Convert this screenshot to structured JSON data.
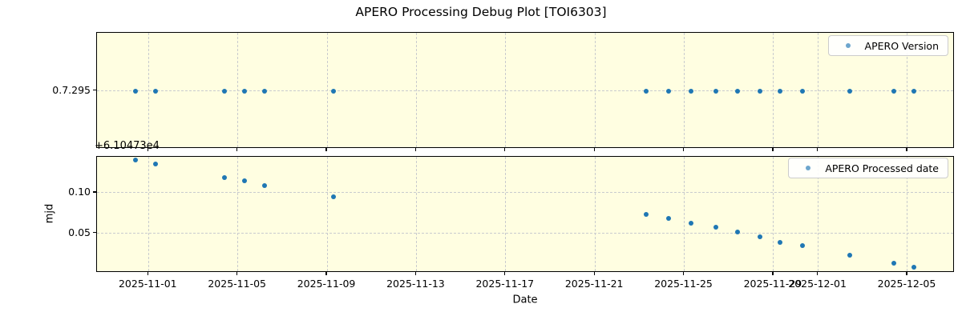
{
  "title": "APERO Processing Debug Plot [TOI6303]",
  "xlabel": "Date",
  "top_plot": {
    "legend": "APERO Version",
    "ytick": "0.7.295"
  },
  "bottom_plot": {
    "legend": "APERO Processed date",
    "ylabel": "mjd",
    "offset_text": "+6.10473e4",
    "yticks": [
      {
        "label": "0.10",
        "value": 0.1
      },
      {
        "label": "0.05",
        "value": 0.05
      }
    ],
    "ylim": [
      0.001,
      0.1445
    ]
  },
  "x_axis": {
    "label": "Date",
    "epoch": "2025-11-01",
    "lim_days": [
      -2.31,
      36.12
    ],
    "ticks": [
      {
        "label": "2025-11-01",
        "day": 0
      },
      {
        "label": "2025-11-05",
        "day": 4
      },
      {
        "label": "2025-11-09",
        "day": 8
      },
      {
        "label": "2025-11-13",
        "day": 12
      },
      {
        "label": "2025-11-17",
        "day": 16
      },
      {
        "label": "2025-11-21",
        "day": 20
      },
      {
        "label": "2025-11-25",
        "day": 24
      },
      {
        "label": "2025-11-29",
        "day": 28
      },
      {
        "label": "2025-12-01",
        "day": 30
      },
      {
        "label": "2025-12-05",
        "day": 34
      }
    ]
  },
  "points": [
    {
      "date": "2025-10-31",
      "day": -0.6,
      "version": "0.7.295",
      "mjd": 0.141
    },
    {
      "date": "2025-11-01",
      "day": 0.3,
      "version": "0.7.295",
      "mjd": 0.136
    },
    {
      "date": "2025-11-04",
      "day": 3.4,
      "version": "0.7.295",
      "mjd": 0.119
    },
    {
      "date": "2025-11-05",
      "day": 4.3,
      "version": "0.7.295",
      "mjd": 0.115
    },
    {
      "date": "2025-11-06",
      "day": 5.2,
      "version": "0.7.295",
      "mjd": 0.109
    },
    {
      "date": "2025-11-09",
      "day": 8.3,
      "version": "0.7.295",
      "mjd": 0.095
    },
    {
      "date": "2025-11-23",
      "day": 22.3,
      "version": "0.7.295",
      "mjd": 0.0737
    },
    {
      "date": "2025-11-24",
      "day": 23.3,
      "version": "0.7.295",
      "mjd": 0.068
    },
    {
      "date": "2025-11-25",
      "day": 24.3,
      "version": "0.7.295",
      "mjd": 0.0623
    },
    {
      "date": "2025-11-26",
      "day": 25.4,
      "version": "0.7.295",
      "mjd": 0.057
    },
    {
      "date": "2025-11-27",
      "day": 26.4,
      "version": "0.7.295",
      "mjd": 0.0517
    },
    {
      "date": "2025-11-28",
      "day": 27.4,
      "version": "0.7.295",
      "mjd": 0.0457
    },
    {
      "date": "2025-11-29",
      "day": 28.3,
      "version": "0.7.295",
      "mjd": 0.0387
    },
    {
      "date": "2025-11-30",
      "day": 29.3,
      "version": "0.7.295",
      "mjd": 0.0347
    },
    {
      "date": "2025-12-02",
      "day": 31.4,
      "version": "0.7.295",
      "mjd": 0.0227
    },
    {
      "date": "2025-12-04",
      "day": 33.4,
      "version": "0.7.295",
      "mjd": 0.013
    },
    {
      "date": "2025-12-05",
      "day": 34.3,
      "version": "0.7.295",
      "mjd": 0.0077
    }
  ],
  "colors": {
    "point": "#1f77b4",
    "axes_background": "#fffee1",
    "grid": "#c9cbce",
    "spine": "#000000",
    "legend_border": "#cccccc",
    "figure_background": "#ffffff"
  },
  "chart_data": [
    {
      "type": "scatter",
      "title": "APERO Processing Debug Plot [TOI6303]",
      "xlabel": "",
      "ylabel": "",
      "grid": true,
      "legend_position": "upper right",
      "x": [
        "2025-10-31",
        "2025-11-01",
        "2025-11-04",
        "2025-11-05",
        "2025-11-06",
        "2025-11-09",
        "2025-11-23",
        "2025-11-24",
        "2025-11-25",
        "2025-11-26",
        "2025-11-27",
        "2025-11-28",
        "2025-11-29",
        "2025-11-30",
        "2025-12-02",
        "2025-12-04",
        "2025-12-05"
      ],
      "series": [
        {
          "name": "APERO Version",
          "values": [
            "0.7.295",
            "0.7.295",
            "0.7.295",
            "0.7.295",
            "0.7.295",
            "0.7.295",
            "0.7.295",
            "0.7.295",
            "0.7.295",
            "0.7.295",
            "0.7.295",
            "0.7.295",
            "0.7.295",
            "0.7.295",
            "0.7.295",
            "0.7.295",
            "0.7.295"
          ]
        }
      ],
      "yticks": [
        "0.7.295"
      ],
      "xlim": [
        "2025-10-29",
        "2025-12-07"
      ]
    },
    {
      "type": "scatter",
      "xlabel": "Date",
      "ylabel": "mjd",
      "y_offset_text": "+6.10473e4",
      "y_offset_value": 61047.3,
      "grid": true,
      "legend_position": "upper right",
      "x": [
        "2025-10-31",
        "2025-11-01",
        "2025-11-04",
        "2025-11-05",
        "2025-11-06",
        "2025-11-09",
        "2025-11-23",
        "2025-11-24",
        "2025-11-25",
        "2025-11-26",
        "2025-11-27",
        "2025-11-28",
        "2025-11-29",
        "2025-11-30",
        "2025-12-02",
        "2025-12-04",
        "2025-12-05"
      ],
      "series": [
        {
          "name": "APERO Processed date",
          "values": [
            0.141,
            0.136,
            0.119,
            0.115,
            0.109,
            0.095,
            0.0737,
            0.068,
            0.0623,
            0.057,
            0.0517,
            0.0457,
            0.0387,
            0.0347,
            0.0227,
            0.013,
            0.0077
          ]
        }
      ],
      "yticks": [
        0.05,
        0.1
      ],
      "ylim": [
        0.001,
        0.1445
      ],
      "xticks": [
        "2025-11-01",
        "2025-11-05",
        "2025-11-09",
        "2025-11-13",
        "2025-11-17",
        "2025-11-21",
        "2025-11-25",
        "2025-11-29",
        "2025-12-01",
        "2025-12-05"
      ]
    }
  ]
}
